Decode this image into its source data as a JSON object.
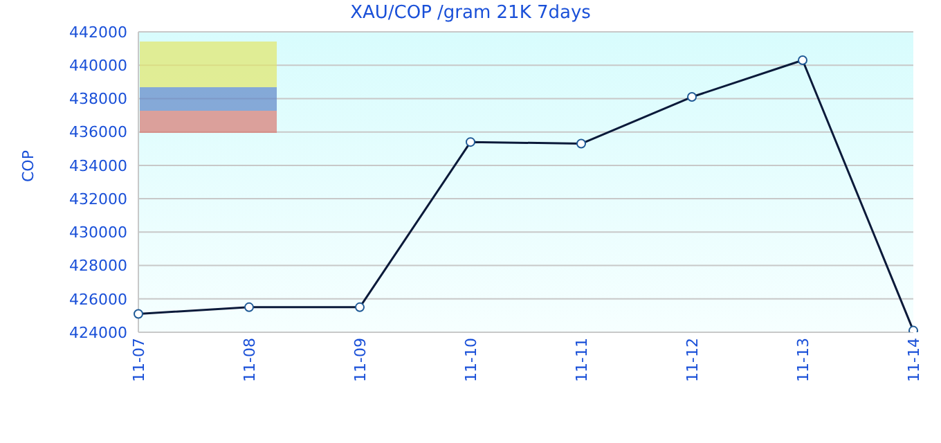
{
  "chart_data": {
    "type": "line",
    "title": "XAU/COP /gram 21K 7days",
    "ylabel": "COP",
    "categories": [
      "11-07",
      "11-08",
      "11-09",
      "11-10",
      "11-11",
      "11-12",
      "11-13",
      "11-14"
    ],
    "series": [
      {
        "color": "#0b1a3a",
        "values": [
          425100,
          425500,
          425500,
          435400,
          435300,
          438100,
          440300,
          424100
        ]
      }
    ],
    "ylim": [
      424000,
      442000
    ],
    "yticks": [
      424000,
      426000,
      428000,
      430000,
      432000,
      434000,
      436000,
      438000,
      440000,
      442000
    ],
    "grid": "y",
    "marker": "circle"
  }
}
